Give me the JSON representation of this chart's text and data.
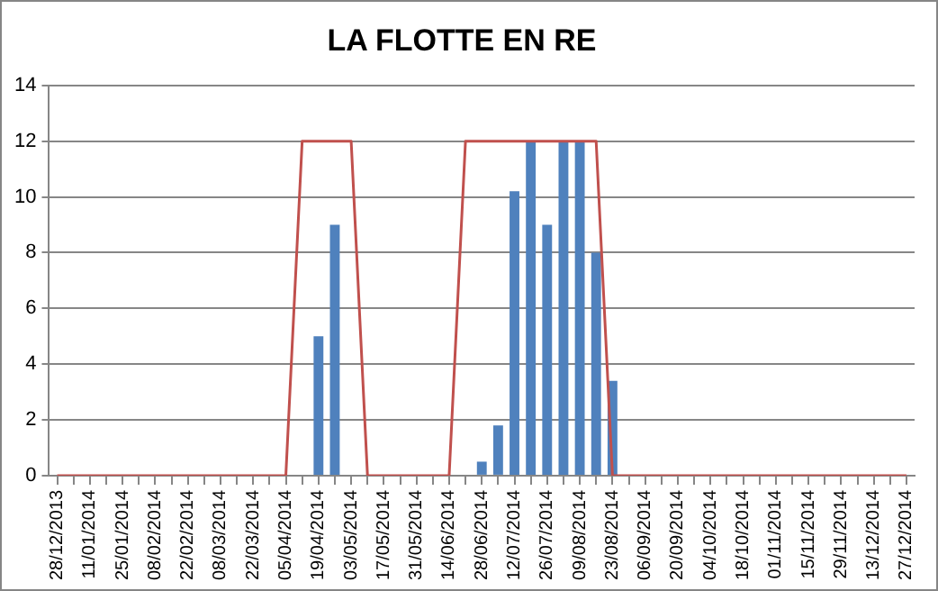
{
  "chart_data": {
    "type": "bar",
    "title": "LA FLOTTE EN RE",
    "categories": [
      "28/12/2013",
      null,
      "11/01/2014",
      null,
      "25/01/2014",
      null,
      "08/02/2014",
      null,
      "22/02/2014",
      null,
      "08/03/2014",
      null,
      "22/03/2014",
      null,
      "05/04/2014",
      null,
      "19/04/2014",
      null,
      "03/05/2014",
      null,
      "17/05/2014",
      null,
      "31/05/2014",
      null,
      "14/06/2014",
      null,
      "28/06/2014",
      null,
      "12/07/2014",
      null,
      "26/07/2014",
      null,
      "09/08/2014",
      null,
      "23/08/2014",
      null,
      "06/09/2014",
      null,
      "20/09/2014",
      null,
      "04/10/2014",
      null,
      "18/10/2014",
      null,
      "01/11/2014",
      null,
      "15/11/2014",
      null,
      "29/11/2014",
      null,
      "13/12/2014",
      null,
      "27/12/2014"
    ],
    "series": [
      {
        "color": "#4f81bd",
        "values": [
          0,
          0,
          0,
          0,
          0,
          0,
          0,
          0,
          0,
          0,
          0,
          0,
          0,
          0,
          0,
          0,
          5,
          9,
          0,
          0,
          0,
          0,
          0,
          0,
          0,
          0,
          0.5,
          1.8,
          10.2,
          12,
          9,
          12,
          12,
          8,
          3.4,
          0,
          0,
          0,
          0,
          0,
          0,
          0,
          0,
          0,
          0,
          0,
          0,
          0,
          0,
          0,
          0,
          0,
          0
        ]
      },
      {
        "type": "line",
        "color": "#c0504d",
        "values": [
          0,
          0,
          0,
          0,
          0,
          0,
          0,
          0,
          0,
          0,
          0,
          0,
          0,
          0,
          0,
          12,
          12,
          12,
          12,
          0,
          0,
          0,
          0,
          0,
          0,
          12,
          12,
          12,
          12,
          12,
          12,
          12,
          12,
          12,
          0,
          0,
          0,
          0,
          0,
          0,
          0,
          0,
          0,
          0,
          0,
          0,
          0,
          0,
          0,
          0,
          0,
          0,
          0
        ]
      }
    ],
    "ylim": [
      0,
      14
    ],
    "yticks": [
      0,
      2,
      4,
      6,
      8,
      10,
      12,
      14
    ],
    "grid": "y",
    "legend": false,
    "marker": "none"
  }
}
